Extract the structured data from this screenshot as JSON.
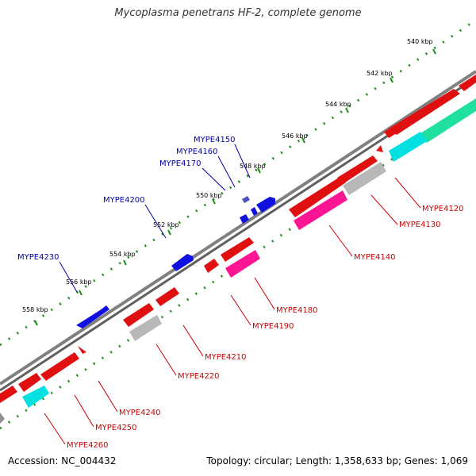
{
  "title": "Mycoplasma penetrans HF-2, complete genome",
  "footer": {
    "accession": "Accession: NC_004432",
    "summary": "Topology: circular; Length: 1,358,633 bp; Genes: 1,069"
  },
  "colors": {
    "backbone": "#808080",
    "ticks": "#228B22",
    "forward_gene": "#1010e0",
    "reverse_gene": "#e01010",
    "reverse_label": "#cc0000",
    "forward_label": "#0000aa",
    "cds_magenta": "#ff1493",
    "cds_grey": "#b8b8b8",
    "cds_cyan": "#00e0e0",
    "cds_green": "#20e0a0"
  },
  "tick_labels": [
    "540 kbp",
    "542 kbp",
    "544 kbp",
    "546 kbp",
    "548 kbp",
    "550 kbp",
    "552 kbp",
    "554 kbp",
    "556 kbp",
    "558 kbp"
  ],
  "forward_gene_labels": [
    "MYPE4150",
    "MYPE4160",
    "MYPE4170",
    "MYPE4200",
    "MYPE4230"
  ],
  "reverse_gene_labels": [
    "MYPE4120",
    "MYPE4130",
    "MYPE4140",
    "MYPE4180",
    "MYPE4190",
    "MYPE4210",
    "MYPE4220",
    "MYPE4240",
    "MYPE4250",
    "MYPE4260"
  ]
}
